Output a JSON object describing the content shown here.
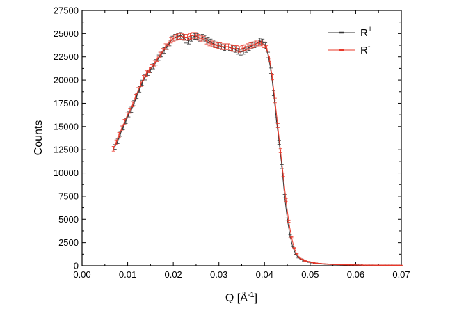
{
  "chart_data": {
    "type": "line",
    "xlabel": "Q [Å",
    "xlabel_sup": "-1",
    "xlabel_end": "]",
    "ylabel": "Counts",
    "xlim": [
      0.0,
      0.07
    ],
    "ylim": [
      0,
      27500
    ],
    "x_ticks": [
      0.0,
      0.01,
      0.02,
      0.03,
      0.04,
      0.05,
      0.06,
      0.07
    ],
    "x_tick_labels": [
      "0.00",
      "0.01",
      "0.02",
      "0.03",
      "0.04",
      "0.05",
      "0.06",
      "0.07"
    ],
    "y_ticks": [
      0,
      2500,
      5000,
      7500,
      10000,
      12500,
      15000,
      17500,
      20000,
      22500,
      25000,
      27500
    ],
    "y_tick_labels": [
      "0",
      "2500",
      "5000",
      "7500",
      "10000",
      "12500",
      "15000",
      "17500",
      "20000",
      "22500",
      "25000",
      "27500"
    ],
    "grid": false,
    "legend_position": "top-right",
    "series": [
      {
        "name": "R",
        "name_sup": "+",
        "color": "#333333",
        "x": [
          0.0072,
          0.0078,
          0.0084,
          0.009,
          0.0096,
          0.0102,
          0.0108,
          0.0114,
          0.012,
          0.0126,
          0.0132,
          0.0138,
          0.0144,
          0.015,
          0.0156,
          0.0162,
          0.0168,
          0.0174,
          0.018,
          0.0186,
          0.0192,
          0.0198,
          0.0204,
          0.021,
          0.0216,
          0.0222,
          0.0228,
          0.0234,
          0.024,
          0.0246,
          0.0252,
          0.0258,
          0.0264,
          0.027,
          0.0276,
          0.0282,
          0.0288,
          0.0294,
          0.03,
          0.0306,
          0.0312,
          0.0318,
          0.0324,
          0.033,
          0.0336,
          0.0342,
          0.0348,
          0.0354,
          0.036,
          0.0366,
          0.0372,
          0.0378,
          0.0384,
          0.039,
          0.0396,
          0.0402,
          0.0408,
          0.0414,
          0.042,
          0.0426,
          0.0432,
          0.0438,
          0.0444,
          0.045,
          0.0456,
          0.0462,
          0.0468,
          0.0474,
          0.048,
          0.0486,
          0.0492,
          0.0498,
          0.0504,
          0.051,
          0.0516,
          0.0522,
          0.0528,
          0.0534,
          0.054,
          0.0546,
          0.0552,
          0.0558,
          0.0564,
          0.057,
          0.0576,
          0.0582,
          0.0588,
          0.0594,
          0.06,
          0.0606,
          0.0612,
          0.0618,
          0.0624,
          0.063,
          0.0636,
          0.0642,
          0.0648,
          0.0654,
          0.066,
          0.0666,
          0.0672,
          0.0678,
          0.0684,
          0.069,
          0.0696
        ],
        "y": [
          12800,
          13400,
          14200,
          14900,
          15600,
          16300,
          16800,
          17500,
          18300,
          19000,
          19700,
          20300,
          20800,
          21100,
          21500,
          21900,
          22400,
          22800,
          23200,
          23600,
          24000,
          24400,
          24600,
          24700,
          24800,
          24600,
          24300,
          24200,
          24500,
          24700,
          24700,
          24500,
          24600,
          24500,
          24300,
          24100,
          23900,
          23800,
          23700,
          23600,
          23500,
          23600,
          23500,
          23400,
          23300,
          23100,
          23000,
          23100,
          23300,
          23500,
          23700,
          23800,
          24000,
          24200,
          24100,
          23700,
          22700,
          21000,
          18600,
          15700,
          13300,
          10700,
          7500,
          5000,
          3200,
          2000,
          1300,
          900,
          700,
          550,
          450,
          400,
          330,
          290,
          250,
          220,
          200,
          180,
          160,
          150,
          140,
          130,
          120,
          110,
          100,
          95,
          90,
          85,
          80,
          75,
          70,
          68,
          65,
          62,
          60,
          58,
          56,
          55,
          53,
          52,
          51,
          50,
          50,
          49,
          48
        ],
        "yerr": [
          250,
          250,
          260,
          260,
          270,
          270,
          280,
          280,
          280,
          290,
          290,
          290,
          300,
          300,
          300,
          300,
          300,
          300,
          300,
          310,
          310,
          310,
          310,
          310,
          310,
          310,
          310,
          310,
          310,
          310,
          310,
          310,
          310,
          310,
          310,
          310,
          310,
          310,
          310,
          310,
          310,
          310,
          310,
          310,
          310,
          310,
          310,
          310,
          310,
          310,
          310,
          310,
          310,
          310,
          310,
          310,
          300,
          290,
          270,
          250,
          230,
          210,
          180,
          150,
          120,
          90,
          70,
          60,
          50,
          45,
          40,
          35,
          30,
          30,
          28,
          26,
          25,
          24,
          23,
          22,
          21,
          20,
          20,
          19,
          18,
          18,
          17,
          17,
          16,
          16,
          16,
          15,
          15,
          15,
          15,
          15,
          15,
          14,
          14,
          14,
          14,
          14,
          14,
          14,
          14
        ]
      },
      {
        "name": "R",
        "name_sup": "-",
        "color": "#e8382a",
        "x": [
          0.0069,
          0.0075,
          0.0081,
          0.0087,
          0.0093,
          0.0099,
          0.0105,
          0.0111,
          0.0117,
          0.0123,
          0.0129,
          0.0135,
          0.0141,
          0.0147,
          0.0153,
          0.0159,
          0.0165,
          0.0171,
          0.0177,
          0.0183,
          0.0189,
          0.0195,
          0.0201,
          0.0207,
          0.0213,
          0.0219,
          0.0225,
          0.0231,
          0.0237,
          0.0243,
          0.0249,
          0.0255,
          0.0261,
          0.0267,
          0.0273,
          0.0279,
          0.0285,
          0.0291,
          0.0297,
          0.0303,
          0.0309,
          0.0315,
          0.0321,
          0.0327,
          0.0333,
          0.0339,
          0.0345,
          0.0351,
          0.0357,
          0.0363,
          0.0369,
          0.0375,
          0.0381,
          0.0387,
          0.0393,
          0.0399,
          0.0405,
          0.0411,
          0.0417,
          0.0423,
          0.0429,
          0.0435,
          0.0441,
          0.0447,
          0.0453,
          0.0459,
          0.0465,
          0.0471,
          0.0477,
          0.0483,
          0.0489,
          0.0495,
          0.0501,
          0.0507,
          0.0513,
          0.0519,
          0.0525,
          0.0531,
          0.0537,
          0.0543,
          0.0549,
          0.0555,
          0.0561,
          0.0567,
          0.0573,
          0.0579,
          0.0585,
          0.0591,
          0.0597,
          0.0603,
          0.0609,
          0.0615,
          0.0621,
          0.0627,
          0.0633,
          0.0639,
          0.0645,
          0.0651,
          0.0657,
          0.0663,
          0.0669,
          0.0675,
          0.0681,
          0.0687,
          0.0693,
          0.0699
        ],
        "y": [
          12600,
          13300,
          14100,
          14800,
          15500,
          16200,
          16700,
          17400,
          18200,
          18900,
          19600,
          20200,
          20700,
          21100,
          21400,
          21800,
          22300,
          22700,
          23100,
          23600,
          24000,
          24300,
          24500,
          24600,
          24700,
          24700,
          24600,
          24600,
          24700,
          24800,
          24800,
          24600,
          24500,
          24400,
          24200,
          24000,
          23900,
          23800,
          23700,
          23700,
          23600,
          23600,
          23600,
          23500,
          23400,
          23400,
          23300,
          23400,
          23500,
          23600,
          23700,
          23800,
          23900,
          24000,
          24000,
          23800,
          23400,
          22300,
          20300,
          17800,
          15100,
          12400,
          9800,
          7100,
          4800,
          3100,
          1900,
          1250,
          880,
          680,
          530,
          440,
          380,
          320,
          280,
          240,
          215,
          195,
          175,
          160,
          148,
          136,
          126,
          117,
          108,
          100,
          94,
          88,
          83,
          78,
          74,
          70,
          67,
          64,
          62,
          60,
          58,
          56,
          54,
          53,
          52,
          51,
          50,
          49,
          48,
          48
        ],
        "yerr": [
          250,
          250,
          260,
          260,
          270,
          270,
          280,
          280,
          280,
          290,
          290,
          290,
          300,
          300,
          300,
          300,
          300,
          300,
          300,
          310,
          310,
          310,
          310,
          310,
          310,
          310,
          310,
          310,
          310,
          310,
          310,
          310,
          310,
          310,
          310,
          310,
          310,
          310,
          310,
          310,
          310,
          310,
          310,
          310,
          310,
          310,
          310,
          310,
          310,
          310,
          310,
          310,
          310,
          310,
          310,
          310,
          300,
          290,
          270,
          250,
          230,
          210,
          180,
          150,
          120,
          90,
          70,
          60,
          50,
          45,
          40,
          35,
          30,
          30,
          28,
          26,
          25,
          24,
          23,
          22,
          21,
          20,
          20,
          19,
          18,
          18,
          17,
          17,
          16,
          16,
          16,
          15,
          15,
          15,
          15,
          15,
          15,
          14,
          14,
          14,
          14,
          14,
          14,
          14,
          14,
          14
        ]
      }
    ]
  }
}
